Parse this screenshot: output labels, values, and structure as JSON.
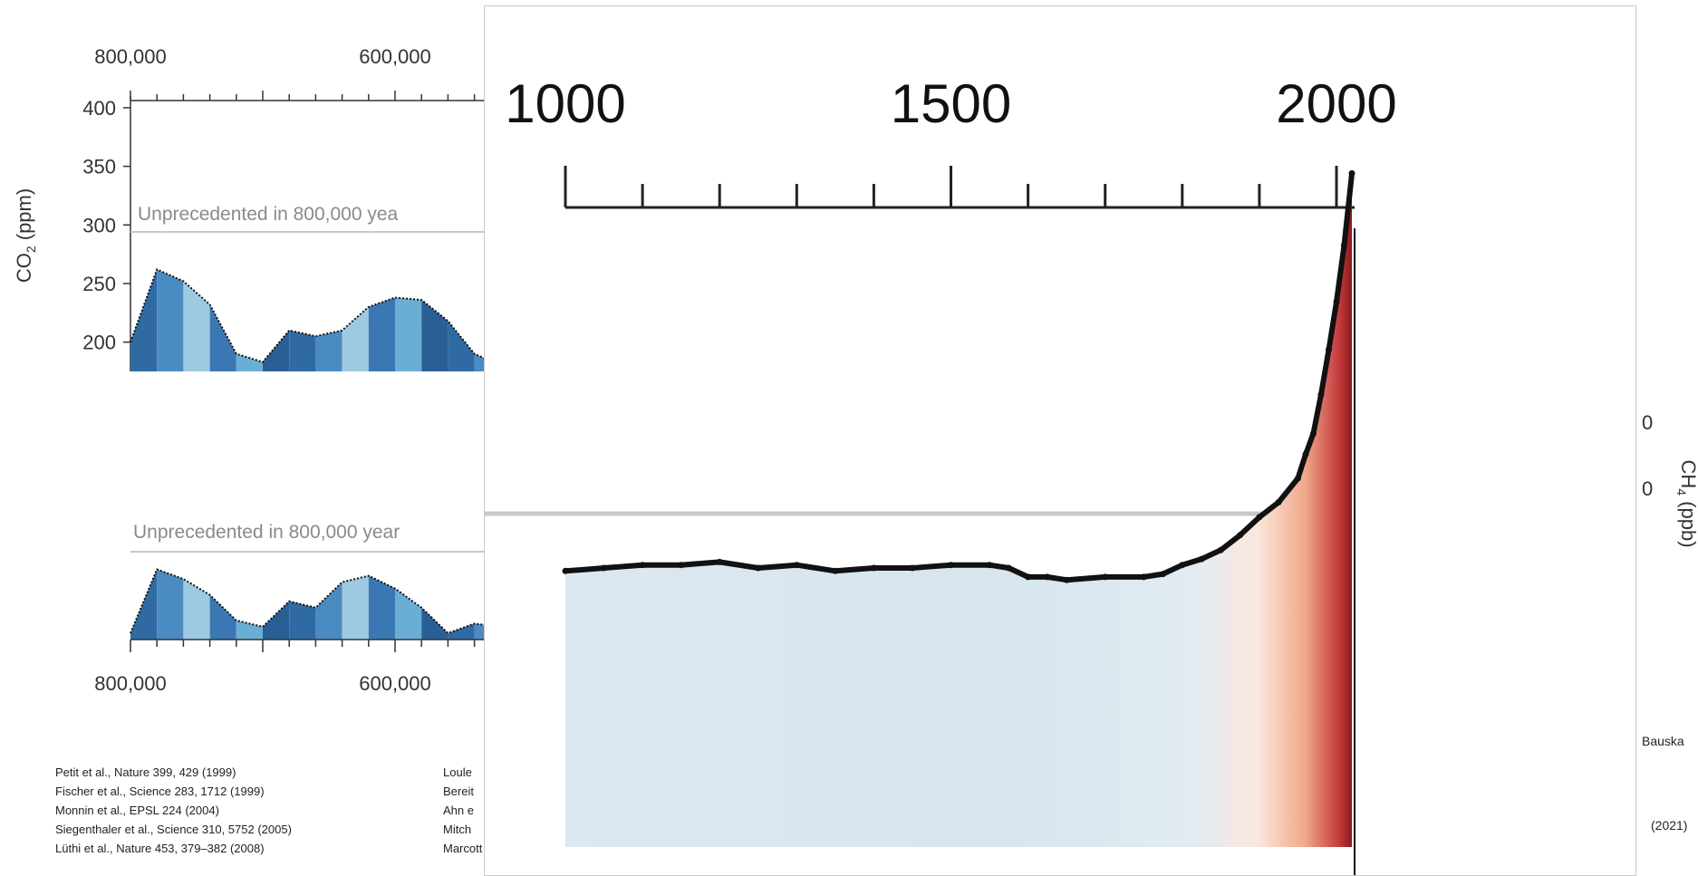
{
  "background_chart": {
    "top_tick_labels": [
      "800,000",
      "600,000"
    ],
    "bottom_tick_labels": [
      "800,000",
      "600,000"
    ],
    "co2_panel": {
      "ylabel": "CO2 (ppm)",
      "y_ticks": [
        "400",
        "350",
        "300",
        "250",
        "200"
      ],
      "threshold_label": "Unprecedented in 800,000 yea"
    },
    "ch4_panel": {
      "ylabel": "CH4 (ppb)",
      "threshold_label": "Unprecedented in 800,000 year"
    },
    "right_fragments": [
      "0",
      "0",
      "Bauska",
      "(2021)"
    ],
    "references_left": [
      "Petit et al., Nature 399, 429 (1999)",
      "Fischer et al., Science 283, 1712 (1999)",
      "Monnin et al., EPSL 224 (2004)",
      "Siegenthaler et al., Science 310, 5752 (2005)",
      "Lüthi et al., Nature 453, 379–382 (2008)"
    ],
    "references_mid": [
      "Loule",
      "Bereit",
      "Ahn e",
      "Mitch",
      "Marcott et al., Nature 514, 616–619 (2014)"
    ]
  },
  "chart_data": [
    {
      "type": "area",
      "panel": "CO2 (ppm), last 800,000 years (partially covered)",
      "ylabel": "CO2 (ppm)",
      "ylim": [
        175,
        410
      ],
      "y_ticks": [
        200,
        250,
        300,
        350,
        400
      ],
      "x_axis_reversed": true,
      "threshold": 300,
      "threshold_label": "Unprecedented in 800,000 yea",
      "x_years_ago": [
        800000,
        790000,
        780000,
        770000,
        760000,
        750000,
        740000,
        730000,
        720000,
        710000,
        700000,
        690000,
        680000,
        670000,
        660000,
        650000,
        640000,
        630000,
        620000,
        610000,
        600000,
        590000,
        580000,
        570000,
        560000,
        550000,
        540000,
        530000,
        520000
      ],
      "values": [
        200,
        262,
        252,
        232,
        190,
        183,
        210,
        205,
        210,
        230,
        238,
        236,
        218,
        190,
        180,
        185,
        186,
        190,
        200,
        238,
        258,
        225,
        248,
        214,
        252,
        254,
        232,
        212,
        205
      ]
    },
    {
      "type": "area",
      "panel": "CH4, last 800,000 years (partially covered)",
      "ylabel": "CH4 (ppb)",
      "threshold_label": "Unprecedented in 800,000 year",
      "x_years_ago": [
        800000,
        790000,
        780000,
        770000,
        760000,
        750000,
        740000,
        730000,
        720000,
        710000,
        700000,
        690000,
        680000,
        670000,
        660000,
        650000,
        640000,
        630000,
        620000,
        610000,
        600000,
        590000,
        580000,
        570000,
        560000,
        550000,
        540000,
        530000,
        520000
      ],
      "values": [
        420,
        620,
        590,
        540,
        460,
        440,
        520,
        500,
        580,
        600,
        560,
        500,
        420,
        450,
        440,
        430,
        520,
        560,
        580,
        560,
        520,
        500,
        560,
        540,
        580,
        500,
        460,
        480,
        420
      ]
    },
    {
      "type": "area",
      "panel": "Inset zoom, years 1000–2000+",
      "x_ticks": [
        1000,
        1500,
        2000
      ],
      "xlim": [
        1000,
        2025
      ],
      "series": [
        {
          "x": [
            1000,
            1050,
            1100,
            1150,
            1200,
            1250,
            1300,
            1350,
            1400,
            1450,
            1500,
            1550,
            1575,
            1600,
            1625,
            1650,
            1700,
            1750,
            1775,
            1800,
            1825,
            1850,
            1875,
            1900,
            1925,
            1950,
            1960,
            1970,
            1980,
            1990,
            2000,
            2010,
            2020
          ],
          "values": [
            279,
            280,
            281,
            281,
            282,
            280,
            281,
            279,
            280,
            280,
            281,
            281,
            280,
            277,
            277,
            276,
            277,
            277,
            278,
            281,
            283,
            286,
            291,
            297,
            302,
            310,
            318,
            325,
            338,
            353,
            369,
            388,
            412
          ]
        }
      ],
      "threshold": 300,
      "shading_colors": [
        "#c6dbef",
        "#fee0d2",
        "#fc9272",
        "#a50f15"
      ]
    }
  ],
  "colors": {
    "blue_dark": "#2f6aa3",
    "blue_light": "#9ecae1",
    "threshold_gray": "#c8c8c8"
  }
}
